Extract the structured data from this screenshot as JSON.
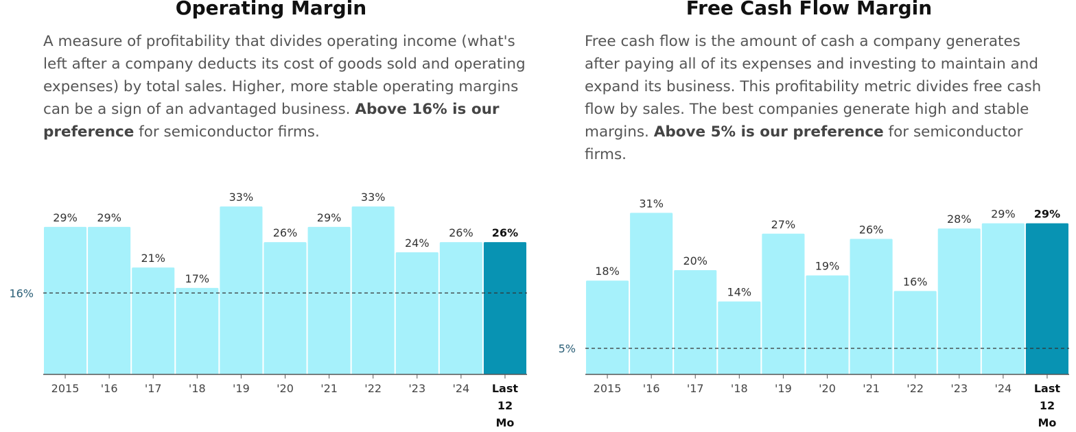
{
  "colors": {
    "bar": "#a6f1fb",
    "highlight": "#0893b3",
    "axis": "#555555",
    "threshold": "#2b5f77",
    "baseline": "#555555"
  },
  "panels": [
    {
      "title": "Operating Margin",
      "description": {
        "text": "A measure of profitability that divides operating income (what's left after a company deducts its cost of goods sold and operating expenses) by total sales. Higher, more stable operating margins can be a sign of an advantaged business. ",
        "bold": "Above 16% is our preference",
        "tail": " for semiconductor firms."
      }
    },
    {
      "title": "Free Cash Flow Margin",
      "description": {
        "text": "Free cash flow is the amount of cash a company generates after paying all of its expenses and investing to maintain and expand its business. This profitability metric divides free cash flow by sales. The best companies generate high and stable margins. ",
        "bold": "Above 5% is our preference",
        "tail": " for semiconductor firms."
      }
    }
  ],
  "chart_data": [
    {
      "type": "bar",
      "title": "Operating Margin",
      "categories": [
        "2015",
        "'16",
        "'17",
        "'18",
        "'19",
        "'20",
        "'21",
        "'22",
        "'23",
        "'24",
        "Last 12 Mo"
      ],
      "values": [
        29,
        29,
        21,
        17,
        33,
        26,
        29,
        33,
        24,
        26,
        26
      ],
      "value_labels": [
        "29%",
        "29%",
        "21%",
        "17%",
        "33%",
        "26%",
        "29%",
        "33%",
        "24%",
        "26%",
        "26%"
      ],
      "highlight_index": 10,
      "threshold": 16,
      "threshold_label": "16%",
      "ylim": [
        0,
        35
      ]
    },
    {
      "type": "bar",
      "title": "Free Cash Flow Margin",
      "categories": [
        "2015",
        "'16",
        "'17",
        "'18",
        "'19",
        "'20",
        "'21",
        "'22",
        "'23",
        "'24",
        "Last 12 Mo"
      ],
      "values": [
        18,
        31,
        20,
        14,
        27,
        19,
        26,
        16,
        28,
        29,
        29
      ],
      "value_labels": [
        "18%",
        "31%",
        "20%",
        "14%",
        "27%",
        "19%",
        "26%",
        "16%",
        "28%",
        "29%",
        "29%"
      ],
      "highlight_index": 10,
      "threshold": 5,
      "threshold_label": "5%",
      "ylim": [
        0,
        33
      ]
    }
  ]
}
